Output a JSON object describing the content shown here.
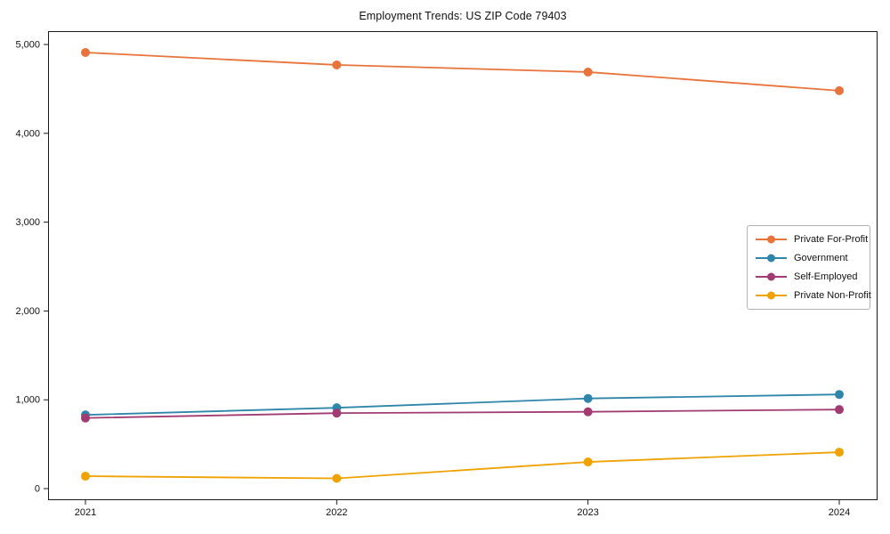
{
  "chart_data": {
    "type": "line",
    "title": "Employment Trends: US ZIP Code 79403",
    "x": [
      "2021",
      "2022",
      "2023",
      "2024"
    ],
    "series": [
      {
        "name": "Private For-Profit",
        "color": "#e8743b",
        "values": [
          4910,
          4770,
          4690,
          4480
        ]
      },
      {
        "name": "Government",
        "color": "#2e86ab",
        "values": [
          830,
          910,
          1015,
          1060
        ]
      },
      {
        "name": "Self-Employed",
        "color": "#a23b72",
        "values": [
          795,
          850,
          865,
          890
        ]
      },
      {
        "name": "Private Non-Profit",
        "color": "#f0a202",
        "values": [
          140,
          115,
          300,
          410
        ]
      }
    ],
    "ylim": [
      0,
      5000
    ],
    "yticks": [
      {
        "value": 0,
        "label": "0"
      },
      {
        "value": 1000,
        "label": "1,000"
      },
      {
        "value": 2000,
        "label": "2,000"
      },
      {
        "value": 3000,
        "label": "3,000"
      },
      {
        "value": 4000,
        "label": "4,000"
      },
      {
        "value": 5000,
        "label": "5,000"
      }
    ],
    "grid": false,
    "legend_position": "right-middle",
    "axis_color": "#1a1a1a",
    "tick_label_color": "#111111"
  }
}
